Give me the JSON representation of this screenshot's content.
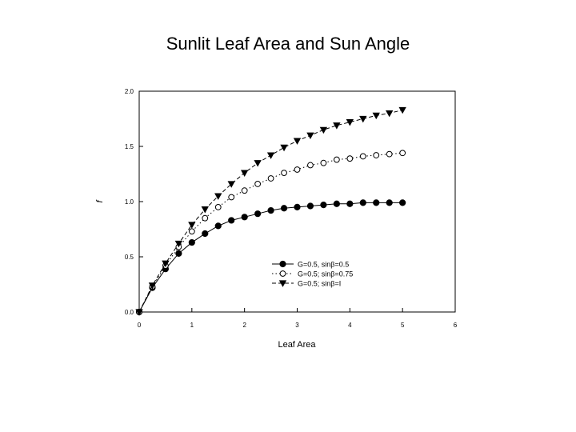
{
  "slide": {
    "title": "Sunlit Leaf Area and Sun Angle"
  },
  "chart_data": {
    "type": "line",
    "title": "",
    "xlabel": "Leaf Area",
    "ylabel": "f",
    "xlim": [
      0,
      6
    ],
    "ylim": [
      0,
      2.0
    ],
    "x_ticks": [
      "0",
      "1",
      "2",
      "3",
      "4",
      "5",
      "6"
    ],
    "y_ticks": [
      "0.0",
      "0.5",
      "1.0",
      "1.5",
      "2.0"
    ],
    "grid": false,
    "legend_position": "bottom-right",
    "x": [
      0,
      0.25,
      0.5,
      0.75,
      1.0,
      1.25,
      1.5,
      1.75,
      2.0,
      2.25,
      2.5,
      2.75,
      3.0,
      3.25,
      3.5,
      3.75,
      4.0,
      4.25,
      4.5,
      4.75,
      5.0
    ],
    "series": [
      {
        "name": "G=0.5, sinβ=0.5",
        "marker": "filled-circle",
        "line": "solid",
        "values": [
          0,
          0.22,
          0.39,
          0.53,
          0.63,
          0.71,
          0.78,
          0.83,
          0.86,
          0.89,
          0.92,
          0.94,
          0.95,
          0.96,
          0.97,
          0.98,
          0.98,
          0.99,
          0.99,
          0.99,
          0.99
        ]
      },
      {
        "name": "G=0.5; sinβ=0.75",
        "marker": "open-circle",
        "line": "dotted",
        "values": [
          0,
          0.23,
          0.42,
          0.59,
          0.73,
          0.85,
          0.95,
          1.04,
          1.1,
          1.16,
          1.21,
          1.26,
          1.29,
          1.33,
          1.35,
          1.38,
          1.39,
          1.41,
          1.42,
          1.43,
          1.44
        ]
      },
      {
        "name": "G=0.5; sinβ=I",
        "marker": "filled-triangle-down",
        "line": "dashed",
        "values": [
          0,
          0.24,
          0.44,
          0.62,
          0.79,
          0.93,
          1.05,
          1.16,
          1.26,
          1.35,
          1.42,
          1.49,
          1.55,
          1.6,
          1.65,
          1.69,
          1.72,
          1.75,
          1.78,
          1.8,
          1.83
        ]
      }
    ]
  }
}
